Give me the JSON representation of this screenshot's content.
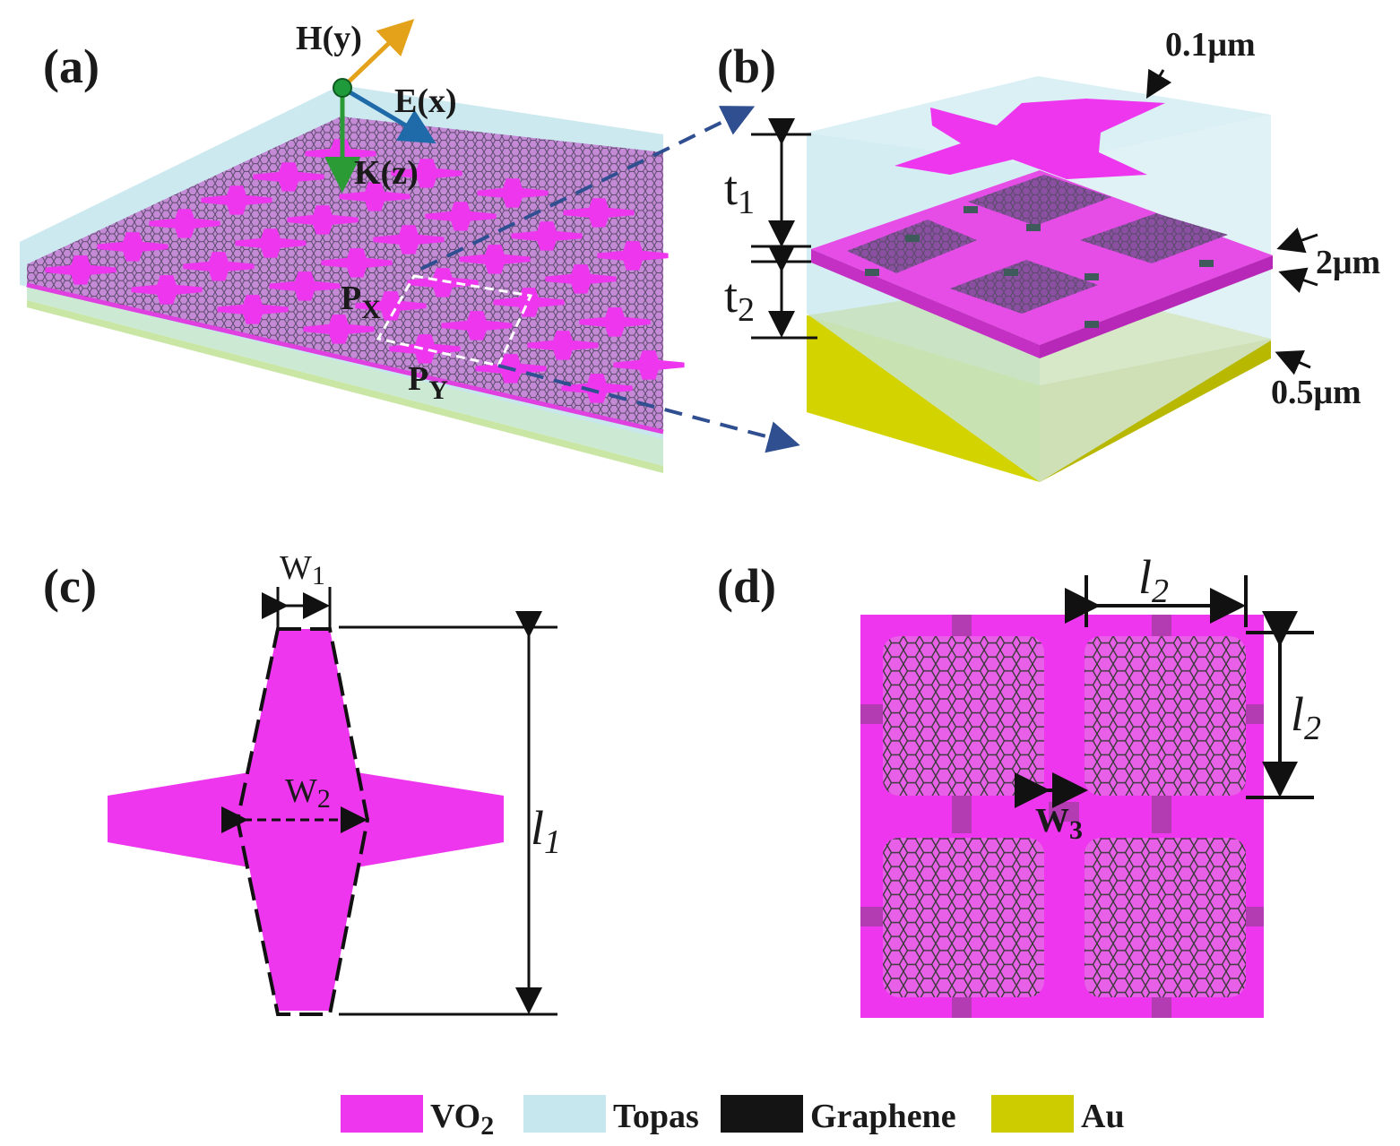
{
  "colors": {
    "vo2": "#ee36ee",
    "topas": "#c6e7ee",
    "graphene": "#141414",
    "au": "#cccc00",
    "field_h": "#e3a21a",
    "field_e": "#1f6aa8",
    "field_k": "#2a9b35",
    "arrow_dashed": "#2f4f90"
  },
  "panel_a": {
    "label": "(a)",
    "h_label": "H(y)",
    "e_label": "E(x)",
    "k_label": "K(z)",
    "px_main": "P",
    "px_sub": "X",
    "py_main": "P",
    "py_sub": "Y"
  },
  "panel_b": {
    "label": "(b)",
    "t1_main": "t",
    "t1_sub": "1",
    "t2_main": "t",
    "t2_sub": "2",
    "top_thickness": "0.1μm",
    "mid_thickness": "2μm",
    "gold_thickness": "0.5μm"
  },
  "panel_c": {
    "label": "(c)",
    "w1_main": "W",
    "w1_sub": "1",
    "w2_main": "W",
    "w2_sub": "2",
    "l1_main": "l",
    "l1_sub": "1"
  },
  "panel_d": {
    "label": "(d)",
    "l2_top_main": "l",
    "l2_top_sub": "2",
    "l2_side_main": "l",
    "l2_side_sub": "2",
    "w3_main": "W",
    "w3_sub": "3"
  },
  "legend": [
    {
      "name": "VO",
      "sub": "2",
      "color": "#ee36ee"
    },
    {
      "name": "Topas",
      "sub": "",
      "color": "#c6e7ee"
    },
    {
      "name": "Graphene",
      "sub": "",
      "color": "#141414"
    },
    {
      "name": "Au",
      "sub": "",
      "color": "#cccc00"
    }
  ]
}
